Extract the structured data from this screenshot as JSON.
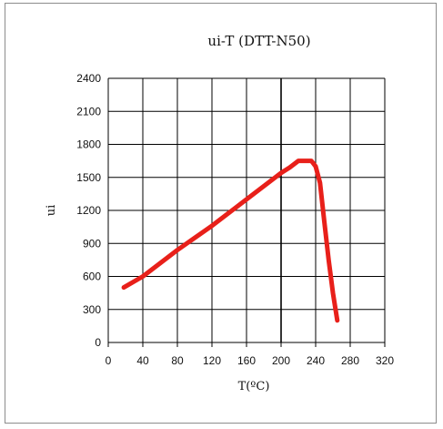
{
  "chart_data": {
    "type": "line",
    "title": "ui-T (DTT-N50)",
    "xlabel": "T(ºC)",
    "ylabel": "ui",
    "xlim": [
      0,
      320
    ],
    "ylim": [
      0,
      2400
    ],
    "xticks": [
      0,
      40,
      80,
      120,
      160,
      200,
      240,
      280,
      320
    ],
    "yticks": [
      0,
      300,
      600,
      900,
      1200,
      1500,
      1800,
      2100,
      2400
    ],
    "grid": true,
    "legend": "none",
    "series": [
      {
        "color": "#e8201a",
        "x": [
          18,
          40,
          60,
          80,
          100,
          120,
          140,
          160,
          180,
          200,
          210,
          220,
          230,
          235,
          240,
          245,
          250,
          255,
          260,
          265
        ],
        "y": [
          500,
          600,
          720,
          840,
          950,
          1060,
          1180,
          1300,
          1420,
          1540,
          1590,
          1650,
          1650,
          1650,
          1600,
          1450,
          1100,
          750,
          450,
          200
        ]
      }
    ]
  }
}
